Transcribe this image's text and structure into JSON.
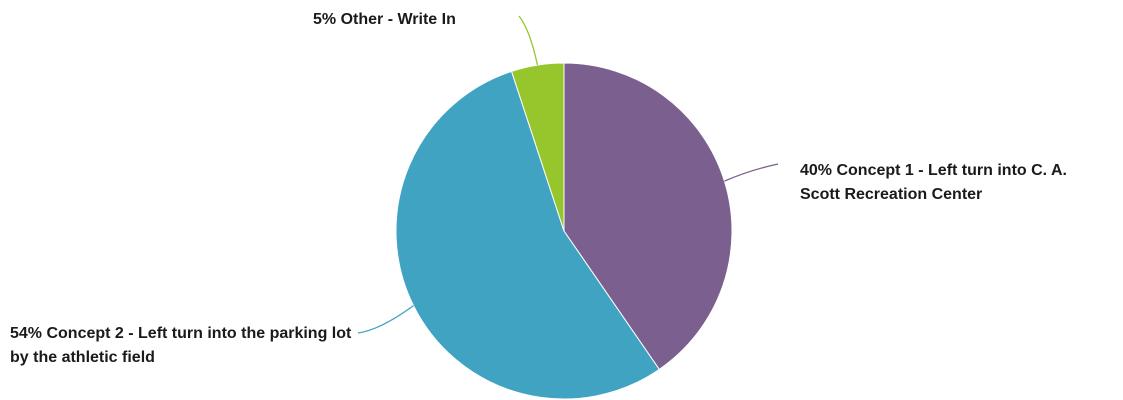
{
  "chart_data": {
    "type": "pie",
    "title": "",
    "slices": [
      {
        "percent": 40,
        "label": "40% Concept 1 - Left turn into C. A. Scott Recreation Center",
        "color": "#7b5f8f"
      },
      {
        "percent": 54,
        "label": "54% Concept 2 - Left turn into the parking lot by the athletic field",
        "color": "#40a3c2"
      },
      {
        "percent": 5,
        "label": "5% Other - Write In",
        "color": "#96c62b"
      }
    ],
    "legend": "none",
    "data_labels": "outside with leader lines"
  }
}
